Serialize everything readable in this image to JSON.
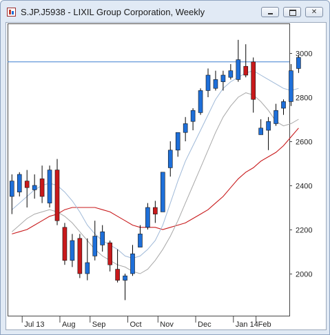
{
  "window": {
    "title": "S.JP.J5938 - LIXIL Group Corporation, Weekly",
    "icons": [
      "chart-app-icon",
      "minimize-icon",
      "maximize-icon",
      "close-icon"
    ]
  },
  "colors": {
    "up": "#1e6fd9",
    "down": "#c8191b",
    "wick": "#000000",
    "ma_fast": "#9fb9d8",
    "ma_mid": "#a8a8a8",
    "ma_slow": "#c8191b",
    "hline": "#3b7fd0"
  },
  "chart_data": {
    "type": "candlestick",
    "ylim": [
      1870,
      3130
    ],
    "y_ticks": [
      "2000",
      "2200",
      "2400",
      "2600",
      "2800",
      "3000"
    ],
    "y_tick_values": [
      2000,
      2200,
      2400,
      2600,
      2800,
      3000
    ],
    "x_labels": [
      {
        "label": "Jul  13",
        "index": 2
      },
      {
        "label": "Aug",
        "index": 7
      },
      {
        "label": "Sep",
        "index": 11
      },
      {
        "label": "Oct",
        "index": 16
      },
      {
        "label": "Nov",
        "index": 20
      },
      {
        "label": "Dec",
        "index": 25
      },
      {
        "label": "Jan 14",
        "index": 30
      },
      {
        "label": "Feb",
        "index": 33
      }
    ],
    "horizontal_line": 2960,
    "candles": [
      {
        "o": 2350,
        "h": 2450,
        "l": 2270,
        "c": 2420
      },
      {
        "o": 2370,
        "h": 2460,
        "l": 2350,
        "c": 2450
      },
      {
        "o": 2420,
        "h": 2470,
        "l": 2300,
        "c": 2390
      },
      {
        "o": 2380,
        "h": 2450,
        "l": 2340,
        "c": 2400
      },
      {
        "o": 2430,
        "h": 2490,
        "l": 2320,
        "c": 2350
      },
      {
        "o": 2320,
        "h": 2490,
        "l": 2300,
        "c": 2470
      },
      {
        "o": 2470,
        "h": 2520,
        "l": 2220,
        "c": 2240
      },
      {
        "o": 2210,
        "h": 2230,
        "l": 2040,
        "c": 2060
      },
      {
        "o": 2060,
        "h": 2180,
        "l": 2030,
        "c": 2150
      },
      {
        "o": 2160,
        "h": 2180,
        "l": 1980,
        "c": 2000
      },
      {
        "o": 2000,
        "h": 2160,
        "l": 1970,
        "c": 2050
      },
      {
        "o": 2080,
        "h": 2240,
        "l": 2060,
        "c": 2170
      },
      {
        "o": 2130,
        "h": 2220,
        "l": 2100,
        "c": 2190
      },
      {
        "o": 2140,
        "h": 2150,
        "l": 2010,
        "c": 2040
      },
      {
        "o": 2020,
        "h": 2110,
        "l": 1960,
        "c": 1970
      },
      {
        "o": 1970,
        "h": 2000,
        "l": 1880,
        "c": 1990
      },
      {
        "o": 2000,
        "h": 2130,
        "l": 1990,
        "c": 2090
      },
      {
        "o": 2120,
        "h": 2220,
        "l": 2120,
        "c": 2180
      },
      {
        "o": 2210,
        "h": 2320,
        "l": 2200,
        "c": 2300
      },
      {
        "o": 2300,
        "h": 2330,
        "l": 2230,
        "c": 2270
      },
      {
        "o": 2280,
        "h": 2460,
        "l": 2280,
        "c": 2460
      },
      {
        "o": 2480,
        "h": 2600,
        "l": 2440,
        "c": 2560
      },
      {
        "o": 2560,
        "h": 2640,
        "l": 2530,
        "c": 2640
      },
      {
        "o": 2640,
        "h": 2710,
        "l": 2600,
        "c": 2680
      },
      {
        "o": 2690,
        "h": 2750,
        "l": 2650,
        "c": 2740
      },
      {
        "o": 2730,
        "h": 2840,
        "l": 2720,
        "c": 2830
      },
      {
        "o": 2830,
        "h": 2930,
        "l": 2800,
        "c": 2900
      },
      {
        "o": 2840,
        "h": 2920,
        "l": 2830,
        "c": 2880
      },
      {
        "o": 2870,
        "h": 2920,
        "l": 2830,
        "c": 2900
      },
      {
        "o": 2890,
        "h": 2950,
        "l": 2880,
        "c": 2920
      },
      {
        "o": 2880,
        "h": 3060,
        "l": 2870,
        "c": 2970
      },
      {
        "o": 2940,
        "h": 3040,
        "l": 2890,
        "c": 2900
      },
      {
        "o": 2960,
        "h": 2980,
        "l": 2730,
        "c": 2790
      },
      {
        "o": 2630,
        "h": 2700,
        "l": 2630,
        "c": 2660
      },
      {
        "o": 2650,
        "h": 2710,
        "l": 2560,
        "c": 2690
      },
      {
        "o": 2680,
        "h": 2770,
        "l": 2670,
        "c": 2740
      },
      {
        "o": 2750,
        "h": 2790,
        "l": 2720,
        "c": 2780
      },
      {
        "o": 2780,
        "h": 2950,
        "l": 2760,
        "c": 2920
      },
      {
        "o": 2930,
        "h": 2990,
        "l": 2910,
        "c": 2980
      }
    ],
    "ma_fast": [
      2290,
      2320,
      2350,
      2380,
      2400,
      2410,
      2400,
      2370,
      2330,
      2280,
      2220,
      2180,
      2150,
      2130,
      2110,
      2080,
      2070,
      2080,
      2110,
      2150,
      2220,
      2320,
      2420,
      2510,
      2580,
      2650,
      2720,
      2790,
      2840,
      2870,
      2890,
      2910,
      2920,
      2900,
      2880,
      2860,
      2840,
      2830,
      2840
    ],
    "ma_mid": [
      2190,
      2220,
      2250,
      2270,
      2280,
      2290,
      2280,
      2260,
      2230,
      2190,
      2150,
      2110,
      2080,
      2060,
      2040,
      2030,
      2010,
      2000,
      2020,
      2060,
      2110,
      2170,
      2240,
      2320,
      2400,
      2480,
      2560,
      2640,
      2710,
      2760,
      2800,
      2820,
      2810,
      2780,
      2740,
      2690,
      2670,
      2680,
      2700
    ],
    "ma_slow": [
      2180,
      2190,
      2200,
      2220,
      2240,
      2260,
      2270,
      2290,
      2300,
      2300,
      2300,
      2300,
      2290,
      2280,
      2260,
      2240,
      2220,
      2210,
      2210,
      2210,
      2200,
      2210,
      2220,
      2230,
      2250,
      2270,
      2290,
      2320,
      2350,
      2390,
      2430,
      2460,
      2480,
      2510,
      2530,
      2550,
      2580,
      2620,
      2660
    ]
  }
}
